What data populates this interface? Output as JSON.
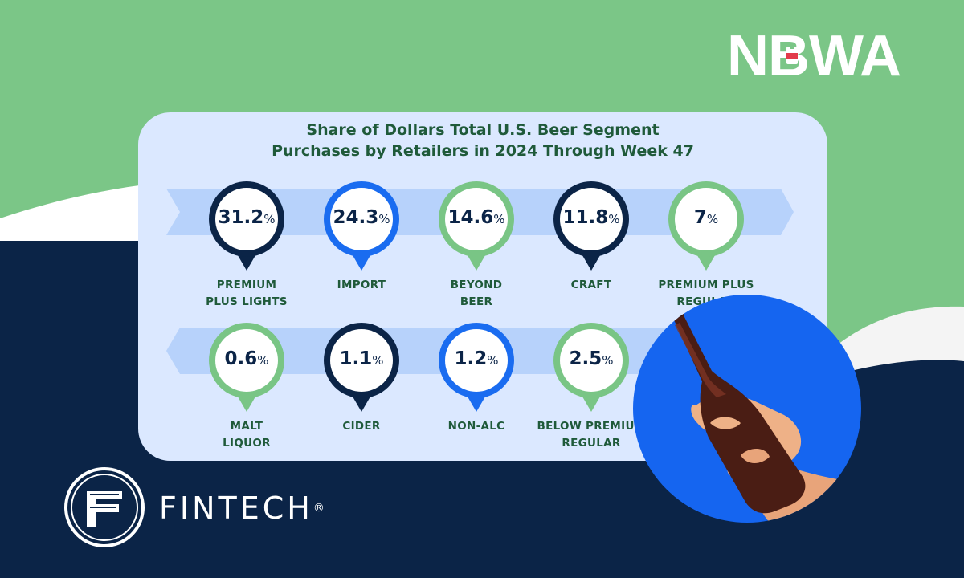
{
  "brand": {
    "name": "NBWA"
  },
  "chart_data": {
    "type": "bar",
    "title_line1": "Share of Dollars Total U.S. Beer Segment",
    "title_line2": "Purchases by Retailers in 2024 Through Week 47",
    "unit": "%",
    "rows": [
      {
        "direction": "right",
        "items": [
          {
            "label_line1": "PREMIUM",
            "label_line2": "PLUS LIGHTS",
            "value": 31.2,
            "display": "31.2",
            "color": "#0b2447"
          },
          {
            "label_line1": "IMPORT",
            "label_line2": "",
            "value": 24.3,
            "display": "24.3",
            "color": "#1a6cf0"
          },
          {
            "label_line1": "BEYOND",
            "label_line2": "BEER",
            "value": 14.6,
            "display": "14.6",
            "color": "#79c585"
          },
          {
            "label_line1": "CRAFT",
            "label_line2": "",
            "value": 11.8,
            "display": "11.8",
            "color": "#0b2447"
          },
          {
            "label_line1": "PREMIUM PLUS",
            "label_line2": "REGULAR",
            "value": 7,
            "display": "7",
            "color": "#79c585"
          }
        ]
      },
      {
        "direction": "left",
        "items": [
          {
            "label_line1": "MALT",
            "label_line2": "LIQUOR",
            "value": 0.6,
            "display": "0.6",
            "color": "#79c585"
          },
          {
            "label_line1": "CIDER",
            "label_line2": "",
            "value": 1.1,
            "display": "1.1",
            "color": "#0b2447"
          },
          {
            "label_line1": "NON-ALC",
            "label_line2": "",
            "value": 1.2,
            "display": "1.2",
            "color": "#1a6cf0"
          },
          {
            "label_line1": "BELOW PREMIUM",
            "label_line2": "REGULAR",
            "value": 2.5,
            "display": "2.5",
            "color": "#79c585"
          }
        ]
      }
    ]
  },
  "footer": {
    "brand": "FINTECH",
    "reg_mark": "®"
  },
  "colors": {
    "background_green": "#7bc687",
    "background_navy": "#0b2447",
    "card": "#dbe8ff",
    "ribbon": "#b7d2fb",
    "title": "#1f5a3a",
    "accent_blue": "#1565f0"
  }
}
